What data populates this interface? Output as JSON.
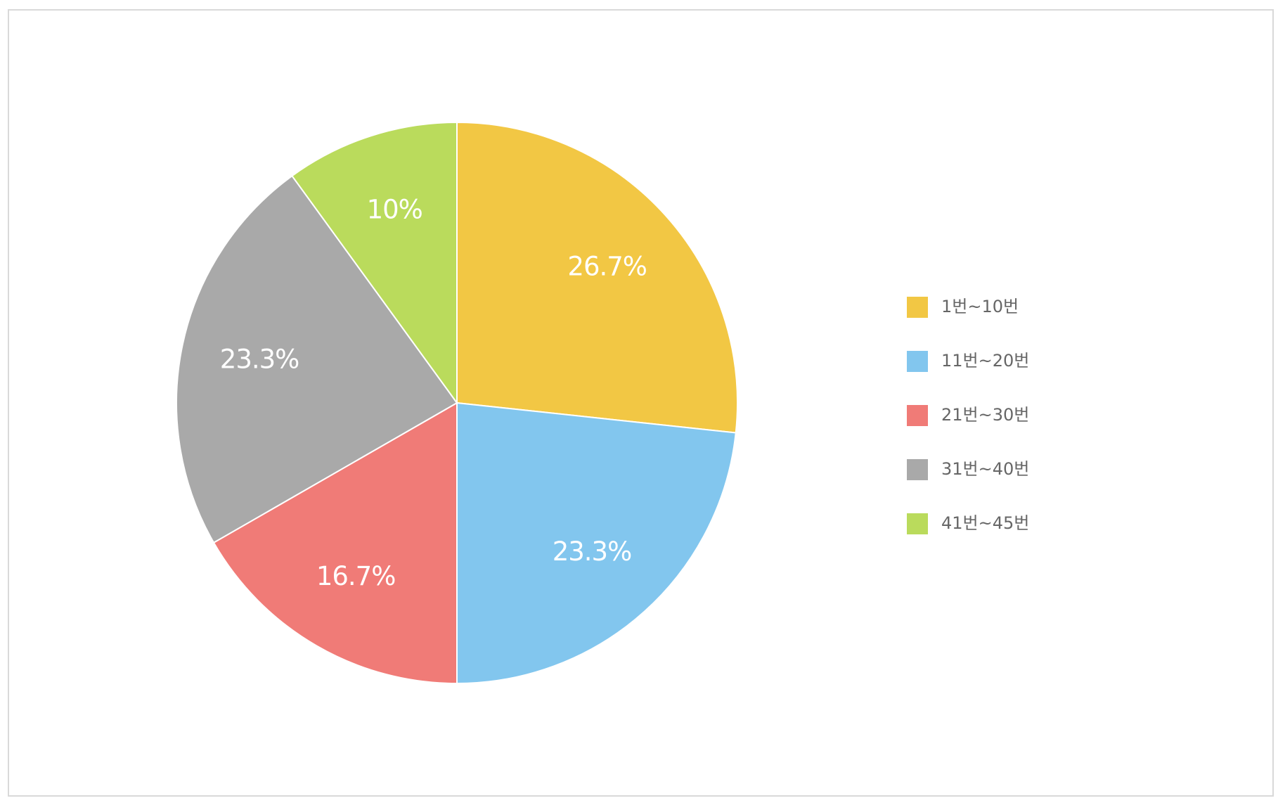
{
  "chart_data": {
    "type": "pie",
    "categories": [
      "1번~10번",
      "11번~20번",
      "21번~30번",
      "31번~40번",
      "41번~45번"
    ],
    "values": [
      26.7,
      23.3,
      16.7,
      23.3,
      10
    ],
    "value_labels": [
      "26.7%",
      "23.3%",
      "16.7%",
      "23.3%",
      "10%"
    ],
    "colors": [
      "#f2c744",
      "#82c6ee",
      "#f07b77",
      "#a9a9a9",
      "#badb5c"
    ],
    "legend": "right"
  }
}
